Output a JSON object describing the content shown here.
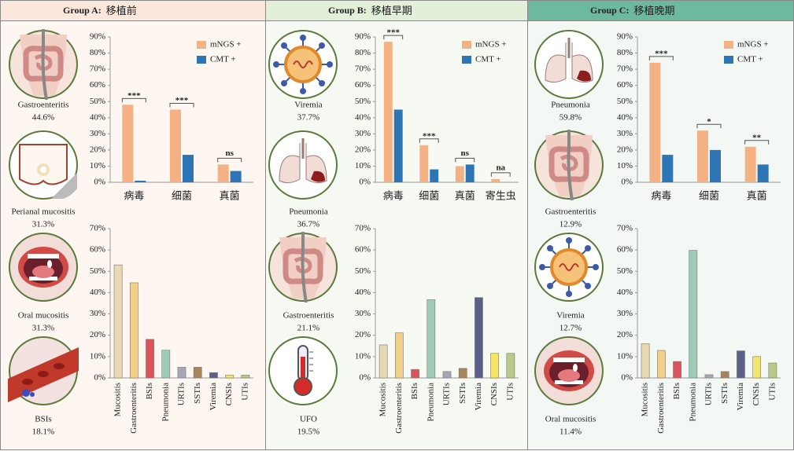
{
  "panels": [
    {
      "header": {
        "group": "Group A:",
        "name": "移植前"
      },
      "icons": [
        {
          "label": "Gastroenteritis",
          "value": "44.6%"
        },
        {
          "label": "Perianal mucositis",
          "value": "31.3%"
        },
        {
          "label": "Oral mucositis",
          "value": "31.3%"
        },
        {
          "label": "BSIs",
          "value": "18.1%"
        }
      ]
    },
    {
      "header": {
        "group": "Group B:",
        "name": "移植早期"
      },
      "icons": [
        {
          "label": "Viremia",
          "value": "37.7%"
        },
        {
          "label": "Pneumonia",
          "value": "36.7%"
        },
        {
          "label": "Gastroenteritis",
          "value": "21.1%"
        },
        {
          "label": "UFO",
          "value": "19.5%"
        }
      ]
    },
    {
      "header": {
        "group": "Group C:",
        "name": "移植晚期"
      },
      "icons": [
        {
          "label": "Pneumonia",
          "value": "59.8%"
        },
        {
          "label": "Gastroenteritis",
          "value": "12.9%"
        },
        {
          "label": "Viremia",
          "value": "12.7%"
        },
        {
          "label": "Oral mucositis",
          "value": "11.4%"
        }
      ]
    }
  ],
  "chart_data": [
    {
      "type": "bar",
      "categories": [
        "病毒",
        "细菌",
        "真菌"
      ],
      "series": [
        {
          "name": "mNGS +",
          "color": "#f4b183",
          "values": [
            48,
            45,
            11
          ]
        },
        {
          "name": "CMT +",
          "color": "#2e75b6",
          "values": [
            1,
            17,
            7
          ]
        }
      ],
      "significance": [
        "***",
        "***",
        "ns"
      ],
      "legend": "upper right",
      "ylim": [
        0,
        90
      ],
      "yticks": [
        {
          "value": 0,
          "label": "0%"
        },
        {
          "value": 10,
          "label": "10%"
        },
        {
          "value": 20,
          "label": "20%"
        },
        {
          "value": 30,
          "label": "30%"
        },
        {
          "value": 40,
          "label": "40%"
        },
        {
          "value": 50,
          "label": "50%"
        },
        {
          "value": 60,
          "label": "60%"
        },
        {
          "value": 70,
          "label": "70%"
        },
        {
          "value": 80,
          "label": "80%"
        },
        {
          "value": 90,
          "label": "90%"
        }
      ]
    },
    {
      "type": "bar",
      "categories": [
        "Mucositis",
        "Gastroenteritis",
        "BSIs",
        "Pneumonia",
        "URTIs",
        "SSTIs",
        "Viremia",
        "CNSIs",
        "UTIs"
      ],
      "values": [
        53,
        44.6,
        18.1,
        13,
        5,
        5,
        2.5,
        1.3,
        1.3
      ],
      "colors": [
        "#e8d9b5",
        "#f2d08a",
        "#d9545b",
        "#9fcbb9",
        "#a6a6b8",
        "#a9845a",
        "#5c5f8a",
        "#f5e66a",
        "#b8c98a"
      ],
      "ylim": [
        0,
        70
      ],
      "yticks": [
        {
          "value": 0,
          "label": "0%"
        },
        {
          "value": 10,
          "label": "10%"
        },
        {
          "value": 20,
          "label": "20%"
        },
        {
          "value": 30,
          "label": "30%"
        },
        {
          "value": 40,
          "label": "40%"
        },
        {
          "value": 50,
          "label": "50%"
        },
        {
          "value": 60,
          "label": "60%"
        },
        {
          "value": 70,
          "label": "70%"
        }
      ]
    },
    {
      "type": "bar",
      "categories": [
        "病毒",
        "细菌",
        "真菌",
        "寄生虫"
      ],
      "series": [
        {
          "name": "mNGS +",
          "color": "#f4b183",
          "values": [
            87,
            23,
            10,
            2
          ]
        },
        {
          "name": "CMT +",
          "color": "#2e75b6",
          "values": [
            45,
            8,
            11,
            0
          ]
        }
      ],
      "significance": [
        "***",
        "***",
        "ns",
        "na"
      ],
      "legend": "upper right",
      "ylim": [
        0,
        90
      ],
      "yticks": [
        {
          "value": 0,
          "label": "0%"
        },
        {
          "value": 10,
          "label": "10%"
        },
        {
          "value": 20,
          "label": "20%"
        },
        {
          "value": 30,
          "label": "30%"
        },
        {
          "value": 40,
          "label": "40%"
        },
        {
          "value": 50,
          "label": "50%"
        },
        {
          "value": 60,
          "label": "60%"
        },
        {
          "value": 70,
          "label": "70%"
        },
        {
          "value": 80,
          "label": "80%"
        },
        {
          "value": 90,
          "label": "90%"
        }
      ]
    },
    {
      "type": "bar",
      "categories": [
        "Mucositis",
        "Gastroenteritis",
        "BSIs",
        "Pneumonia",
        "URTIs",
        "SSTIs",
        "Viremia",
        "CNSIs",
        "UTIs"
      ],
      "values": [
        15.5,
        21.1,
        4,
        36.7,
        3,
        4.5,
        37.7,
        11.5,
        11.5
      ],
      "colors": [
        "#e8d9b5",
        "#f2d08a",
        "#d9545b",
        "#9fcbb9",
        "#a6a6b8",
        "#a9845a",
        "#5c5f8a",
        "#f5e66a",
        "#b8c98a"
      ],
      "ylim": [
        0,
        70
      ],
      "yticks": [
        {
          "value": 0,
          "label": "0%"
        },
        {
          "value": 10,
          "label": "10%"
        },
        {
          "value": 20,
          "label": "20%"
        },
        {
          "value": 30,
          "label": "30%"
        },
        {
          "value": 40,
          "label": "40%"
        },
        {
          "value": 50,
          "label": "50%"
        },
        {
          "value": 60,
          "label": "60%"
        },
        {
          "value": 70,
          "label": "70%"
        }
      ]
    },
    {
      "type": "bar",
      "categories": [
        "病毒",
        "细菌",
        "真菌"
      ],
      "series": [
        {
          "name": "mNGS +",
          "color": "#f4b183",
          "values": [
            74,
            32,
            22
          ]
        },
        {
          "name": "CMT +",
          "color": "#2e75b6",
          "values": [
            17,
            20,
            11
          ]
        }
      ],
      "significance": [
        "***",
        "*",
        "**"
      ],
      "legend": "upper right",
      "ylim": [
        0,
        90
      ],
      "yticks": [
        {
          "value": 0,
          "label": "0%"
        },
        {
          "value": 10,
          "label": "10%"
        },
        {
          "value": 20,
          "label": "20%"
        },
        {
          "value": 30,
          "label": "30%"
        },
        {
          "value": 40,
          "label": "40%"
        },
        {
          "value": 50,
          "label": "50%"
        },
        {
          "value": 60,
          "label": "60%"
        },
        {
          "value": 70,
          "label": "70%"
        },
        {
          "value": 80,
          "label": "80%"
        },
        {
          "value": 90,
          "label": "90%"
        }
      ]
    },
    {
      "type": "bar",
      "categories": [
        "Mucositis",
        "Gastroenteritis",
        "BSIs",
        "Pneumonia",
        "URTIs",
        "SSTIs",
        "Viremia",
        "CNSIs",
        "UTIs"
      ],
      "values": [
        16,
        12.9,
        7.7,
        59.8,
        1.5,
        3,
        12.7,
        10,
        7
      ],
      "colors": [
        "#e8d9b5",
        "#f2d08a",
        "#d9545b",
        "#9fcbb9",
        "#a6a6b8",
        "#a9845a",
        "#5c5f8a",
        "#f5e66a",
        "#b8c98a"
      ],
      "ylim": [
        0,
        70
      ],
      "yticks": [
        {
          "value": 0,
          "label": "0%"
        },
        {
          "value": 10,
          "label": "10%"
        },
        {
          "value": 20,
          "label": "20%"
        },
        {
          "value": 30,
          "label": "30%"
        },
        {
          "value": 40,
          "label": "40%"
        },
        {
          "value": 50,
          "label": "50%"
        },
        {
          "value": 60,
          "label": "60%"
        },
        {
          "value": 70,
          "label": "70%"
        }
      ]
    }
  ]
}
